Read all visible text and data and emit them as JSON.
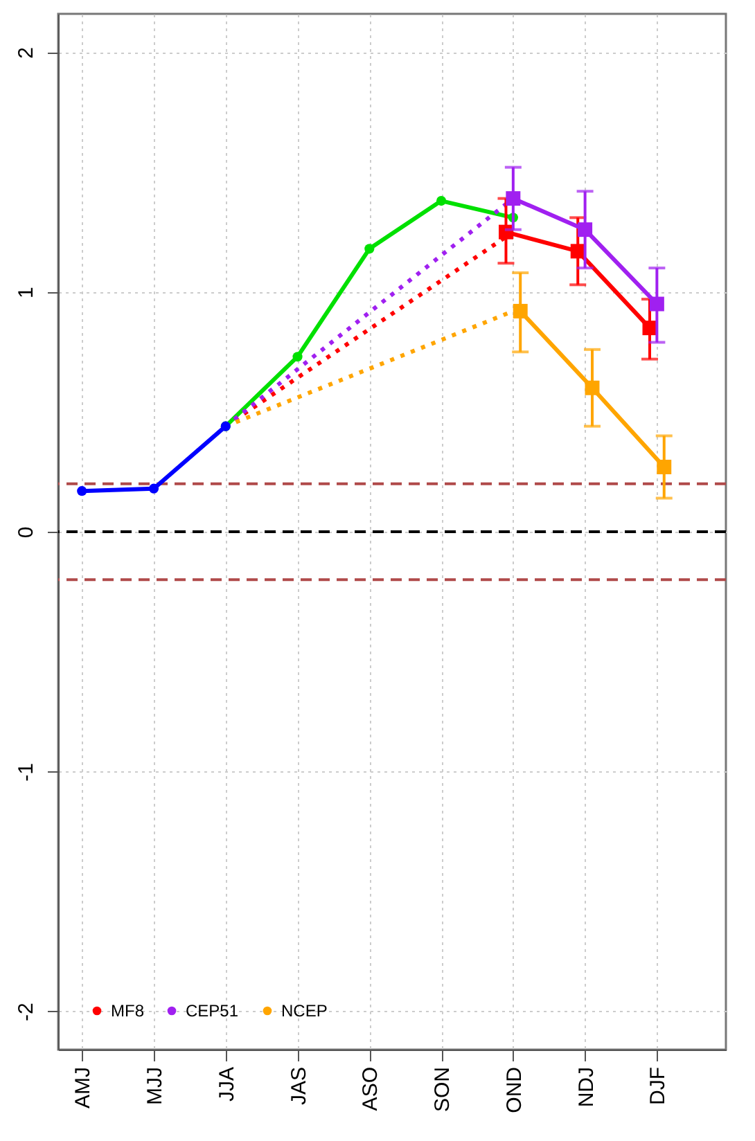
{
  "chart_data": {
    "type": "line",
    "categories": [
      "AMJ",
      "MJJ",
      "JJA",
      "JAS",
      "ASO",
      "SON",
      "OND",
      "NDJ",
      "DJF"
    ],
    "ylim": [
      -2.16,
      2.16
    ],
    "yticks": [
      -2,
      -1,
      0,
      1,
      2
    ],
    "grid": true,
    "legend": "bottom left",
    "ref_lines": [
      {
        "axis": "y",
        "value": 0.2,
        "color": "#b04a4a",
        "line_style": "dashed"
      },
      {
        "axis": "y",
        "value": 0,
        "color": "#000000",
        "line_style": "dashed"
      },
      {
        "axis": "y",
        "value": -0.2,
        "color": "#b04a4a",
        "line_style": "dashed"
      }
    ],
    "series": [
      {
        "color": "#00e000",
        "values": [
          null,
          null,
          0.44,
          0.73,
          1.18,
          1.38,
          1.31,
          null,
          null
        ],
        "marker": "circle",
        "line_style": "solid"
      },
      {
        "color": "#ff0000",
        "values": [
          null,
          null,
          0.44,
          null,
          null,
          null,
          1.25,
          null,
          null
        ],
        "marker": "none",
        "line_style": "dotted"
      },
      {
        "color": "#a020f0",
        "values": [
          null,
          null,
          0.44,
          null,
          null,
          null,
          1.39,
          null,
          null
        ],
        "marker": "none",
        "line_style": "dotted"
      },
      {
        "color": "#ffa500",
        "values": [
          null,
          null,
          0.44,
          null,
          null,
          null,
          0.92,
          null,
          null
        ],
        "marker": "none",
        "line_style": "dotted"
      },
      {
        "color": "#0000ff",
        "values": [
          0.17,
          0.18,
          0.44,
          null,
          null,
          null,
          null,
          null,
          null
        ],
        "marker": "circle",
        "line_style": "solid"
      },
      {
        "name": "MF8",
        "color": "#ff0000",
        "values": [
          null,
          null,
          null,
          null,
          null,
          null,
          1.25,
          1.17,
          0.85
        ],
        "errors": [
          null,
          null,
          null,
          null,
          null,
          null,
          [
            1.12,
            1.39
          ],
          [
            1.03,
            1.31
          ],
          [
            0.72,
            0.97
          ]
        ],
        "marker": "square",
        "line_style": "solid"
      },
      {
        "name": "CEP51",
        "color": "#a020f0",
        "values": [
          null,
          null,
          null,
          null,
          null,
          null,
          1.39,
          1.26,
          0.95
        ],
        "errors": [
          null,
          null,
          null,
          null,
          null,
          null,
          [
            1.26,
            1.52
          ],
          [
            1.1,
            1.42
          ],
          [
            0.79,
            1.1
          ]
        ],
        "marker": "square",
        "line_style": "solid"
      },
      {
        "name": "NCEP",
        "color": "#ffa500",
        "values": [
          null,
          null,
          null,
          null,
          null,
          null,
          0.92,
          0.6,
          0.27
        ],
        "errors": [
          null,
          null,
          null,
          null,
          null,
          null,
          [
            0.75,
            1.08
          ],
          [
            0.44,
            0.76
          ],
          [
            0.14,
            0.4
          ]
        ],
        "marker": "square",
        "line_style": "solid"
      }
    ]
  }
}
